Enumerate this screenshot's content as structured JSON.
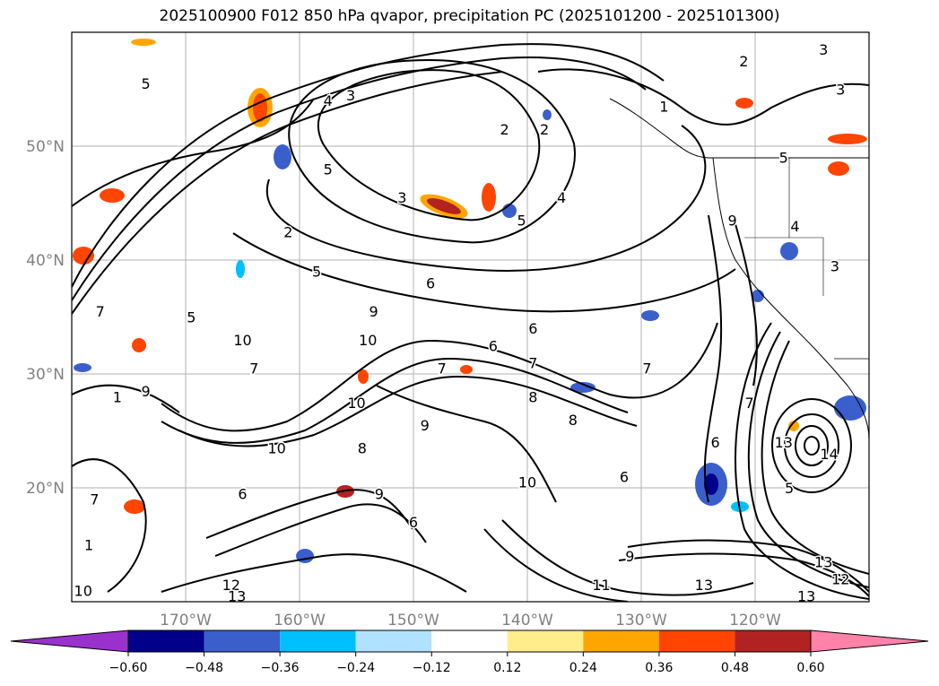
{
  "title": "2025100900 F012 850 hPa qvapor, precipitation PC (2025101200 - 2025101300)",
  "map": {
    "lon_range": [
      -180,
      -110
    ],
    "lat_range": [
      10,
      60
    ],
    "lon_ticks": [
      {
        "value": -170,
        "label": "170°W"
      },
      {
        "value": -160,
        "label": "160°W"
      },
      {
        "value": -150,
        "label": "150°W"
      },
      {
        "value": -140,
        "label": "140°W"
      },
      {
        "value": -130,
        "label": "130°W"
      },
      {
        "value": -120,
        "label": "120°W"
      }
    ],
    "lat_ticks": [
      {
        "value": 20,
        "label": "20°N"
      },
      {
        "value": 30,
        "label": "30°N"
      },
      {
        "value": 40,
        "label": "40°N"
      },
      {
        "value": 50,
        "label": "50°N"
      }
    ],
    "gridlines": true
  },
  "colorbar": {
    "extend": "both",
    "ticks": [
      "−0.60",
      "−0.48",
      "−0.36",
      "−0.24",
      "−0.12",
      "0.12",
      "0.24",
      "0.36",
      "0.48",
      "0.60"
    ],
    "colors": [
      "#9932cc",
      "#00008b",
      "#3a5fcd",
      "#00bfff",
      "#b0e2ff",
      "#ffffff",
      "#ffec8b",
      "#ffa500",
      "#ff4500",
      "#b22222",
      "#ff82ab"
    ]
  },
  "contour_labels": [
    {
      "text": "3",
      "lon": -114,
      "lat": 58.5
    },
    {
      "text": "3",
      "lon": -112.5,
      "lat": 55
    },
    {
      "text": "2",
      "lon": -121,
      "lat": 57.5
    },
    {
      "text": "1",
      "lon": -128,
      "lat": 53.5
    },
    {
      "text": "5",
      "lon": -117.5,
      "lat": 49
    },
    {
      "text": "5",
      "lon": -173.5,
      "lat": 55.5
    },
    {
      "text": "4",
      "lon": -157.5,
      "lat": 54
    },
    {
      "text": "3",
      "lon": -155.5,
      "lat": 54.5
    },
    {
      "text": "2",
      "lon": -142,
      "lat": 51.5
    },
    {
      "text": "2",
      "lon": -138.5,
      "lat": 51.5
    },
    {
      "text": "3",
      "lon": -151,
      "lat": 45.5
    },
    {
      "text": "2",
      "lon": -161,
      "lat": 42.5
    },
    {
      "text": "5",
      "lon": -157.5,
      "lat": 48
    },
    {
      "text": "4",
      "lon": -137,
      "lat": 45.5
    },
    {
      "text": "5",
      "lon": -140.5,
      "lat": 43.5
    },
    {
      "text": "4",
      "lon": -116.5,
      "lat": 43
    },
    {
      "text": "9",
      "lon": -122,
      "lat": 43.5
    },
    {
      "text": "3",
      "lon": -113,
      "lat": 39.5
    },
    {
      "text": "5",
      "lon": -158.5,
      "lat": 39
    },
    {
      "text": "6",
      "lon": -148.5,
      "lat": 38
    },
    {
      "text": "9",
      "lon": -153.5,
      "lat": 35.5
    },
    {
      "text": "5",
      "lon": -169.5,
      "lat": 35
    },
    {
      "text": "7",
      "lon": -177.5,
      "lat": 35.5
    },
    {
      "text": "10",
      "lon": -165,
      "lat": 33
    },
    {
      "text": "10",
      "lon": -154,
      "lat": 33
    },
    {
      "text": "6",
      "lon": -139.5,
      "lat": 34
    },
    {
      "text": "6",
      "lon": -143,
      "lat": 32.5
    },
    {
      "text": "7",
      "lon": -147.5,
      "lat": 30.5
    },
    {
      "text": "7",
      "lon": -139.5,
      "lat": 31
    },
    {
      "text": "7",
      "lon": -129.5,
      "lat": 30.5
    },
    {
      "text": "9",
      "lon": -173.5,
      "lat": 28.5
    },
    {
      "text": "7",
      "lon": -164,
      "lat": 30.5
    },
    {
      "text": "8",
      "lon": -139.5,
      "lat": 28
    },
    {
      "text": "10",
      "lon": -155,
      "lat": 27.5
    },
    {
      "text": "9",
      "lon": -149,
      "lat": 25.5
    },
    {
      "text": "1",
      "lon": -176,
      "lat": 28
    },
    {
      "text": "7",
      "lon": -120.5,
      "lat": 27.5
    },
    {
      "text": "8",
      "lon": -136,
      "lat": 26
    },
    {
      "text": "8",
      "lon": -154.5,
      "lat": 23.5
    },
    {
      "text": "10",
      "lon": -162,
      "lat": 23.5
    },
    {
      "text": "13",
      "lon": -117.5,
      "lat": 24
    },
    {
      "text": "14",
      "lon": -113.5,
      "lat": 23
    },
    {
      "text": "6",
      "lon": -123.5,
      "lat": 24
    },
    {
      "text": "6",
      "lon": -131.5,
      "lat": 21
    },
    {
      "text": "10",
      "lon": -140,
      "lat": 20.5
    },
    {
      "text": "5",
      "lon": -117,
      "lat": 20
    },
    {
      "text": "7",
      "lon": -178,
      "lat": 19
    },
    {
      "text": "6",
      "lon": -165,
      "lat": 19.5
    },
    {
      "text": "6",
      "lon": -150,
      "lat": 17
    },
    {
      "text": "9",
      "lon": -153,
      "lat": 19.5
    },
    {
      "text": "1",
      "lon": -178.5,
      "lat": 15
    },
    {
      "text": "9",
      "lon": -131,
      "lat": 14
    },
    {
      "text": "13",
      "lon": -114,
      "lat": 13.5
    },
    {
      "text": "12",
      "lon": -112.5,
      "lat": 12
    },
    {
      "text": "12",
      "lon": -166,
      "lat": 11.5
    },
    {
      "text": "13",
      "lon": -165.5,
      "lat": 10.5
    },
    {
      "text": "13",
      "lon": -124.5,
      "lat": 11.5
    },
    {
      "text": "13",
      "lon": -115.5,
      "lat": 10.5
    },
    {
      "text": "11",
      "lon": -133.5,
      "lat": 11.5
    },
    {
      "text": "10",
      "lon": -179,
      "lat": 11
    }
  ]
}
